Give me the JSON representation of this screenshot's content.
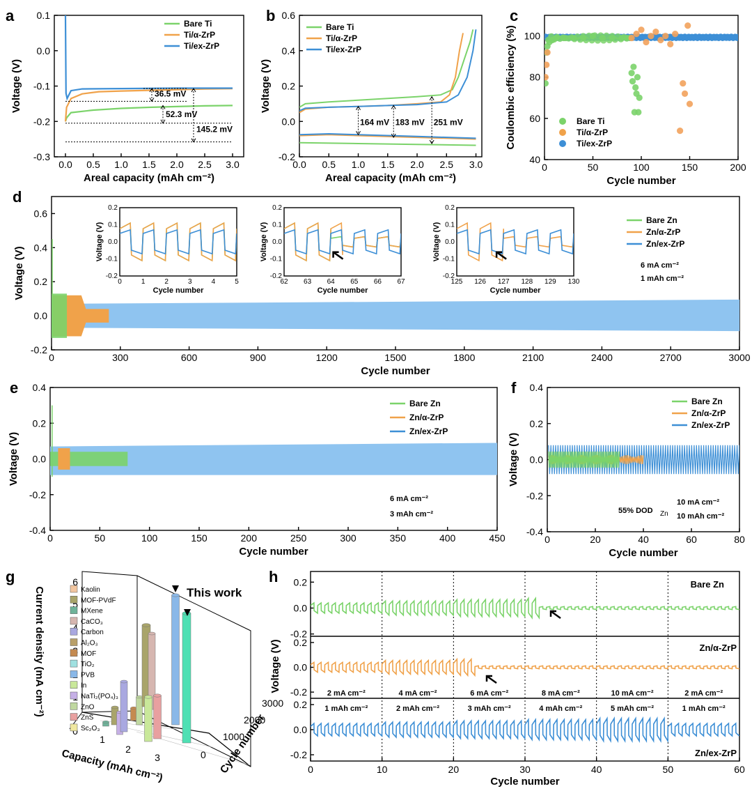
{
  "colors": {
    "green": "#7bd36a",
    "orange": "#f0a24a",
    "blue": "#3d8fd6",
    "lightblue": "#8fc4f0",
    "orange_dot": "#f2a25c"
  },
  "labels": {
    "a": "a",
    "b": "b",
    "c": "c",
    "d": "d",
    "e": "e",
    "f": "f",
    "g": "g",
    "h": "h"
  },
  "chart_data": [
    {
      "panel": "a",
      "type": "line",
      "xlabel": "Areal capacity (mAh cm⁻²)",
      "ylabel": "Voltage (V)",
      "xlim": [
        -0.2,
        3.2
      ],
      "ylim": [
        -0.3,
        0.1
      ],
      "xticks": [
        "0.0",
        "0.5",
        "1.0",
        "1.5",
        "2.0",
        "2.5",
        "3.0"
      ],
      "yticks": [
        "0.1",
        "0.0",
        "-0.1",
        "-0.2",
        "-0.3"
      ],
      "series": [
        {
          "name": "Bare Ti",
          "x": [
            0,
            0.02,
            0.1,
            0.5,
            1.0,
            1.5,
            2.0,
            2.5,
            3.0
          ],
          "y": [
            -0.2,
            -0.19,
            -0.175,
            -0.168,
            -0.163,
            -0.16,
            -0.158,
            -0.156,
            -0.155
          ]
        },
        {
          "name": "Ti/α-ZrP",
          "x": [
            0,
            0.02,
            0.1,
            0.3,
            0.6,
            1.0,
            1.5,
            2.0,
            2.5,
            3.0
          ],
          "y": [
            -0.2,
            -0.16,
            -0.135,
            -0.122,
            -0.116,
            -0.114,
            -0.112,
            -0.11,
            -0.108,
            -0.107
          ]
        },
        {
          "name": "Ti/ex-ZrP",
          "x": [
            0,
            0.01,
            0.03,
            0.1,
            0.3,
            1.0,
            2.0,
            3.0
          ],
          "y": [
            0.1,
            -0.12,
            -0.135,
            -0.113,
            -0.108,
            -0.107,
            -0.106,
            -0.106
          ]
        }
      ],
      "annotations": [
        "36.5 mV",
        "52.3 mV",
        "145.2 mV"
      ]
    },
    {
      "panel": "b",
      "type": "line",
      "xlabel": "Areal capacity (mAh cm⁻²)",
      "ylabel": "Voltage (V)",
      "xlim": [
        0,
        3.1
      ],
      "ylim": [
        -0.2,
        0.6
      ],
      "xticks": [
        "0.0",
        "0.5",
        "1.0",
        "1.5",
        "2.0",
        "2.5",
        "3.0"
      ],
      "yticks": [
        "0.6",
        "0.4",
        "0.2",
        "0.0",
        "-0.2"
      ],
      "series": [
        {
          "name": "Bare Ti",
          "x": [
            0,
            0.1,
            0.5,
            1.0,
            1.5,
            2.0,
            2.4,
            2.6,
            2.7,
            2.8,
            2.9,
            2.95
          ],
          "y": [
            0.08,
            0.1,
            0.11,
            0.12,
            0.13,
            0.14,
            0.15,
            0.18,
            0.25,
            0.35,
            0.45,
            0.52
          ]
        },
        {
          "name": "Ti/α-ZrP",
          "x": [
            0,
            0.1,
            0.5,
            1.0,
            1.5,
            2.0,
            2.4,
            2.55,
            2.65,
            2.72,
            2.78
          ],
          "y": [
            0.05,
            0.07,
            0.08,
            0.085,
            0.09,
            0.1,
            0.11,
            0.15,
            0.25,
            0.4,
            0.5
          ]
        },
        {
          "name": "Ti/ex-ZrP",
          "x": [
            0,
            0.1,
            0.5,
            1.0,
            1.5,
            2.0,
            2.5,
            2.7,
            2.85,
            2.95,
            3.0
          ],
          "y": [
            0.06,
            0.075,
            0.08,
            0.085,
            0.09,
            0.095,
            0.11,
            0.15,
            0.25,
            0.4,
            0.52
          ]
        },
        {
          "name": "Bare Ti discharge",
          "x": [
            0,
            1.0,
            2.0,
            3.0
          ],
          "y": [
            -0.12,
            -0.125,
            -0.13,
            -0.135
          ]
        },
        {
          "name": "Ti/α-ZrP discharge",
          "x": [
            0,
            0.5,
            1.0,
            2.0,
            3.0
          ],
          "y": [
            -0.08,
            -0.075,
            -0.08,
            -0.09,
            -0.1
          ]
        },
        {
          "name": "Ti/ex-ZrP discharge",
          "x": [
            0,
            0.5,
            1.0,
            2.0,
            3.0
          ],
          "y": [
            -0.075,
            -0.07,
            -0.075,
            -0.085,
            -0.095
          ]
        }
      ],
      "annotations": [
        "164 mV",
        "183 mV",
        "251 mV"
      ]
    },
    {
      "panel": "c",
      "type": "scatter",
      "xlabel": "Cycle number",
      "ylabel": "Coulombic efficiency (%)",
      "xlim": [
        0,
        200
      ],
      "ylim": [
        40,
        110
      ],
      "xticks": [
        "0",
        "50",
        "100",
        "150",
        "200"
      ],
      "yticks": [
        "100",
        "80",
        "60",
        "40"
      ],
      "series": [
        {
          "name": "Bare Ti",
          "x": [
            1,
            2,
            3,
            5,
            8,
            12,
            20,
            30,
            40,
            50,
            60,
            70,
            80,
            85,
            90,
            91,
            92,
            93,
            94,
            95,
            96,
            97,
            98
          ],
          "y": [
            77,
            92,
            95,
            97,
            98,
            99,
            99,
            99,
            99,
            100,
            99,
            99,
            99,
            99,
            82,
            78,
            85,
            63,
            75,
            72,
            80,
            63,
            70
          ]
        },
        {
          "name": "Ti/α-ZrP",
          "x": [
            1,
            2,
            3,
            90,
            95,
            100,
            105,
            110,
            115,
            120,
            125,
            130,
            135,
            140,
            143,
            145,
            148,
            150
          ],
          "y": [
            80,
            86,
            92,
            99,
            101,
            103,
            97,
            100,
            102,
            98,
            100,
            96,
            101,
            54,
            77,
            72,
            105,
            67
          ]
        },
        {
          "name": "Ti/ex-ZrP",
          "x": [
            1,
            10,
            20,
            40,
            60,
            80,
            100,
            120,
            140,
            160,
            180,
            200
          ],
          "y": [
            99,
            99.5,
            99.6,
            99.7,
            99.7,
            99.8,
            99.8,
            99.8,
            99.8,
            99.8,
            99.8,
            99.8
          ]
        }
      ]
    },
    {
      "panel": "d",
      "type": "line",
      "xlabel": "Cycle number",
      "ylabel": "Voltage (V)",
      "xlim": [
        0,
        3000
      ],
      "ylim": [
        -0.2,
        0.7
      ],
      "xticks": [
        "0",
        "300",
        "600",
        "900",
        "1200",
        "1500",
        "1800",
        "2100",
        "2400",
        "2700",
        "3000"
      ],
      "yticks": [
        "0.6",
        "0.4",
        "0.2",
        "0.0",
        "-0.2"
      ],
      "series": [
        {
          "name": "Bare Zn",
          "x_end": 67,
          "amplitude": 0.13
        },
        {
          "name": "Zn/α-ZrP",
          "x_end": 250,
          "amplitude": 0.12
        },
        {
          "name": "Zn/ex-ZrP",
          "x_end": 3000,
          "amplitude": 0.08
        }
      ],
      "conditions": [
        "6 mA cm⁻²",
        "1 mAh cm⁻²"
      ],
      "insets": [
        {
          "xlim": [
            0,
            5
          ],
          "xticks": [
            "0",
            "1",
            "2",
            "3",
            "4",
            "5"
          ],
          "yticks": [
            "0.2",
            "0.1",
            "0.0",
            "-0.1",
            "-0.2"
          ],
          "xlabel": "Cycle number",
          "ylabel": "Voltage (V)"
        },
        {
          "xlim": [
            62,
            67
          ],
          "xticks": [
            "62",
            "63",
            "64",
            "65",
            "66",
            "67"
          ],
          "yticks": [
            "0.2",
            "0.1",
            "0.0",
            "-0.1",
            "-0.2"
          ],
          "xlabel": "Cycle number",
          "ylabel": "Voltage (V)"
        },
        {
          "xlim": [
            125,
            130
          ],
          "xticks": [
            "125",
            "126",
            "127",
            "128",
            "129",
            "130"
          ],
          "yticks": [
            "0.2",
            "0.1",
            "0.0",
            "-0.1",
            "-0.2"
          ],
          "xlabel": "Cycle number",
          "ylabel": "Voltage (V)"
        }
      ]
    },
    {
      "panel": "e",
      "type": "line",
      "xlabel": "Cycle number",
      "ylabel": "Voltage (V)",
      "xlim": [
        0,
        450
      ],
      "ylim": [
        -0.4,
        0.4
      ],
      "xticks": [
        "0",
        "50",
        "100",
        "150",
        "200",
        "250",
        "300",
        "350",
        "400",
        "450"
      ],
      "yticks": [
        "0.4",
        "0.2",
        "0.0",
        "-0.2",
        "-0.4"
      ],
      "series": [
        {
          "name": "Bare Zn",
          "x_end": 78,
          "amplitude": 0.04
        },
        {
          "name": "Zn/α-ZrP",
          "x_end": 20,
          "amplitude": 0.04
        },
        {
          "name": "Zn/ex-ZrP",
          "x_end": 450,
          "amplitude": 0.09
        }
      ],
      "conditions": [
        "6 mA cm⁻²",
        "3 mAh cm⁻²"
      ]
    },
    {
      "panel": "f",
      "type": "line",
      "xlabel": "Cycle number",
      "ylabel": "Voltage (V)",
      "xlim": [
        0,
        80
      ],
      "ylim": [
        -0.4,
        0.4
      ],
      "xticks": [
        "0",
        "20",
        "40",
        "60",
        "80"
      ],
      "yticks": [
        "0.4",
        "0.2",
        "0.0",
        "-0.2",
        "-0.4"
      ],
      "series": [
        {
          "name": "Bare Zn",
          "x_end": 30,
          "amplitude": 0.05
        },
        {
          "name": "Zn/α-ZrP",
          "x_end": 40,
          "amplitude": 0.03
        },
        {
          "name": "Zn/ex-ZrP",
          "x_end": 80,
          "amplitude": 0.08
        }
      ],
      "conditions": [
        "10 mA cm⁻²",
        "10 mAh cm⁻²",
        "55% DOD",
        "Zn"
      ]
    },
    {
      "panel": "g",
      "type": "bar",
      "xlabel": "Capacity (mAh cm⁻²)",
      "ylabel": "Current density (mA cm⁻²)",
      "zlabel": "Cycle number",
      "xticks": [
        "0",
        "1",
        "2",
        "3"
      ],
      "yticks": [
        "1",
        "2",
        "3",
        "4",
        "5",
        "6"
      ],
      "zticks": [
        "0",
        "1000",
        "2000",
        "3000"
      ],
      "categories": [
        "Kaolin",
        "MOF-PVdF",
        "MXene",
        "CaCO₃",
        "Carbon",
        "Al₂O₃",
        "MOF",
        "TiO₂",
        "PVB",
        "In",
        "NaTi₂(PO₄)₃",
        "ZnO",
        "ZnS",
        "Sc₂O₃"
      ],
      "annotation": "This work"
    },
    {
      "panel": "h",
      "type": "line",
      "xlabel": "Cycle number",
      "ylabel": "Voltage (V)",
      "xlim": [
        0,
        60
      ],
      "xticks": [
        "0",
        "10",
        "20",
        "30",
        "40",
        "50",
        "60"
      ],
      "yticks": [
        "0.2",
        "0.0",
        "-0.2"
      ],
      "series": [
        {
          "name": "Bare Zn",
          "fail_cycle": 32
        },
        {
          "name": "Zn/α-ZrP",
          "fail_cycle": 23
        },
        {
          "name": "Zn/ex-ZrP",
          "fail_cycle": null
        }
      ],
      "current_labels": [
        "2 mA cm⁻²",
        "4 mA cm⁻²",
        "6 mA cm⁻²",
        "8 mA cm⁻²",
        "10 mA cm⁻²",
        "2 mA cm⁻²"
      ],
      "capacity_labels": [
        "1 mAh cm⁻²",
        "2 mAh cm⁻²",
        "3 mAh cm⁻²",
        "4 mAh cm⁻²",
        "5 mAh cm⁻²",
        "1 mAh cm⁻²"
      ],
      "amplitudes": [
        0.04,
        0.055,
        0.065,
        0.075,
        0.085,
        0.04
      ]
    }
  ]
}
